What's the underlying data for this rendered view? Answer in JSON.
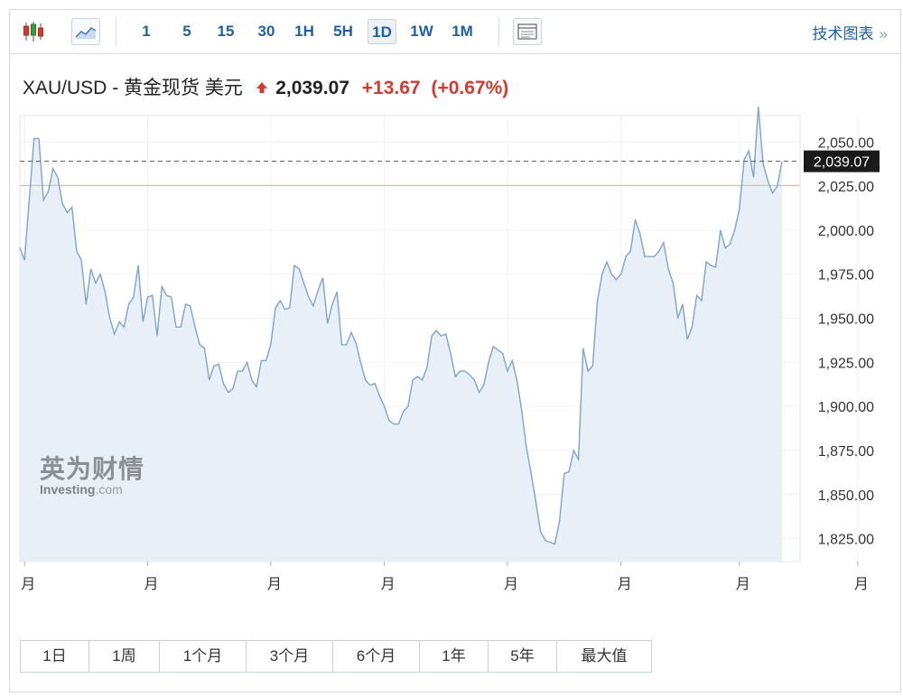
{
  "toolbar": {
    "intervals": [
      "1",
      "5",
      "15",
      "30",
      "1H",
      "5H",
      "1D",
      "1W",
      "1M"
    ],
    "active_interval": "1D",
    "tech_chart_label": "技术图表",
    "tech_chart_chevron": "»"
  },
  "instrument": {
    "symbol": "XAU/USD",
    "separator": "-",
    "name": "黄金现货 美元",
    "price": "2,039.07",
    "change": "+13.67",
    "change_pct": "(+0.67%)",
    "direction_icon": "up-arrow-icon"
  },
  "watermark": {
    "cn": "英为财情",
    "en": "Investing",
    "en_suffix": ".com"
  },
  "range_buttons": [
    "1日",
    "1周",
    "1个月",
    "3个月",
    "6个月",
    "1年",
    "5年",
    "最大值"
  ],
  "colors": {
    "accent": "#1f5ea8",
    "up": "#d63a2f",
    "line": "#7fa4c9",
    "area": "#e9eff6",
    "prev_close": "#e8a8a8",
    "price_tag_bg": "#1a1a1a"
  },
  "chart_data": {
    "type": "area",
    "ylim": [
      1812,
      2065
    ],
    "yticks": [
      "2,050.00",
      "2,025.00",
      "2,000.00",
      "1,975.00",
      "1,950.00",
      "1,925.00",
      "1,900.00",
      "1,875.00",
      "1,850.00",
      "1,825.00"
    ],
    "ytick_values": [
      2050,
      2025,
      2000,
      1975,
      1950,
      1925,
      1900,
      1875,
      1850,
      1825
    ],
    "xtick_labels": [
      "月",
      "月",
      "月",
      "月",
      "月",
      "月",
      "月",
      "月"
    ],
    "xtick_index": [
      1,
      27,
      53,
      77,
      103,
      127,
      152,
      177
    ],
    "current_price": 2039.07,
    "current_price_label": "2,039.07",
    "previous_close": 2025.4,
    "grid": true,
    "values": [
      1990,
      1983,
      2018,
      2052,
      2052,
      2017,
      2022,
      2035,
      2030,
      2015,
      2010,
      2013,
      1988,
      1983,
      1958,
      1978,
      1970,
      1975,
      1965,
      1950,
      1941,
      1948,
      1945,
      1958,
      1962,
      1980,
      1948,
      1962,
      1963,
      1940,
      1968,
      1963,
      1962,
      1945,
      1945,
      1958,
      1957,
      1945,
      1935,
      1933,
      1915,
      1923,
      1924,
      1913,
      1908,
      1910,
      1920,
      1920,
      1925,
      1915,
      1911,
      1926,
      1926,
      1935,
      1956,
      1960,
      1955,
      1956,
      1980,
      1978,
      1970,
      1962,
      1957,
      1966,
      1973,
      1947,
      1958,
      1965,
      1935,
      1935,
      1942,
      1936,
      1925,
      1915,
      1912,
      1913,
      1906,
      1900,
      1892,
      1890,
      1890,
      1897,
      1900,
      1915,
      1917,
      1915,
      1922,
      1940,
      1943,
      1940,
      1941,
      1930,
      1917,
      1920,
      1920,
      1918,
      1915,
      1908,
      1912,
      1925,
      1934,
      1932,
      1930,
      1920,
      1926,
      1915,
      1898,
      1877,
      1862,
      1846,
      1829,
      1824,
      1823,
      1822,
      1835,
      1862,
      1863,
      1875,
      1870,
      1933,
      1920,
      1923,
      1960,
      1975,
      1982,
      1975,
      1972,
      1975,
      1985,
      1988,
      2006,
      1998,
      1985,
      1985,
      1985,
      1988,
      1993,
      1978,
      1970,
      1950,
      1958,
      1938,
      1945,
      1963,
      1960,
      1982,
      1980,
      1979,
      2000,
      1990,
      1992,
      2000,
      2012,
      2040,
      2045,
      2030,
      2070,
      2038,
      2028,
      2021,
      2025,
      2039
    ]
  }
}
